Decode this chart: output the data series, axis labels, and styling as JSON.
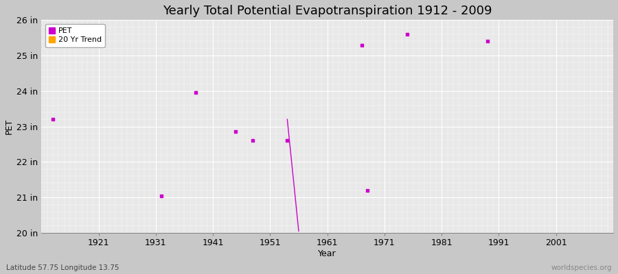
{
  "title": "Yearly Total Potential Evapotranspiration 1912 - 2009",
  "xlabel": "Year",
  "ylabel": "PET",
  "subtitle_left": "Latitude 57.75 Longitude 13.75",
  "subtitle_right": "worldspecies.org",
  "pet_years": [
    1913,
    1932,
    1938,
    1945,
    1948,
    1954,
    1967,
    1968,
    1975,
    1989
  ],
  "pet_values": [
    23.2,
    21.05,
    23.95,
    22.85,
    22.6,
    22.6,
    25.3,
    21.2,
    25.6,
    25.4
  ],
  "pet_color": "#CC00CC",
  "trend_line_x": [
    1954,
    1956
  ],
  "trend_line_y": [
    23.2,
    20.05
  ],
  "trend_color": "#CC00CC",
  "ylim": [
    20.0,
    26.0
  ],
  "xlim": [
    1911,
    2011
  ],
  "yticks": [
    20,
    21,
    22,
    23,
    24,
    25,
    26
  ],
  "ytick_labels": [
    "20 in",
    "21 in",
    "22 in",
    "23 in",
    "24 in",
    "25 in",
    "26 in"
  ],
  "xticks": [
    1921,
    1931,
    1941,
    1951,
    1961,
    1971,
    1981,
    1991,
    2001
  ],
  "outer_bg_color": "#C8C8C8",
  "plot_bg_color": "#E8E8E8",
  "grid_color": "#FFFFFF",
  "legend_pet_label": "PET",
  "legend_trend_label": "20 Yr Trend",
  "legend_pet_color": "#CC00CC",
  "legend_trend_color": "#FFA500",
  "title_fontsize": 13,
  "axis_label_fontsize": 9,
  "tick_fontsize": 9
}
